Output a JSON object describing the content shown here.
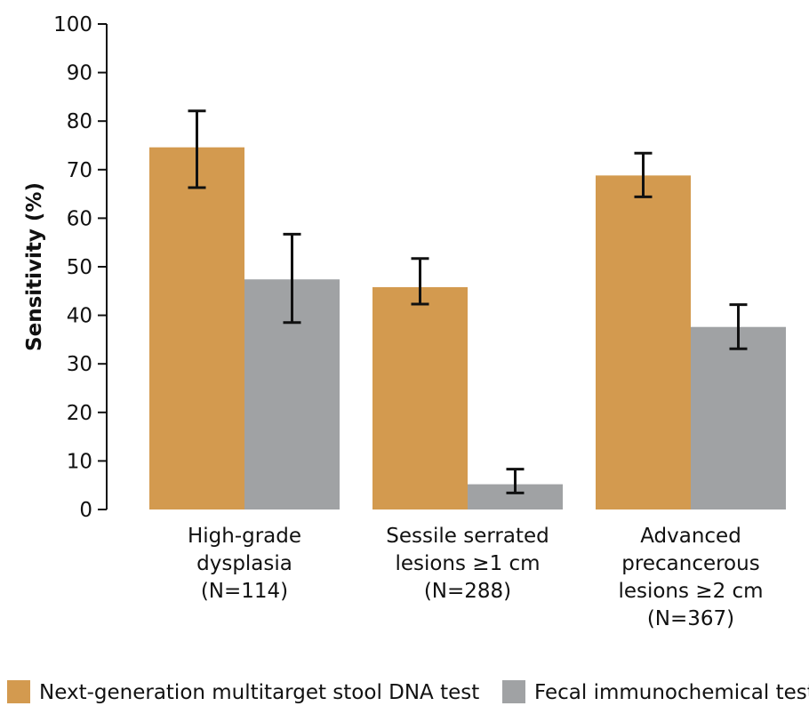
{
  "chart_data": {
    "type": "bar",
    "title": "",
    "xlabel": "",
    "ylabel": "Sensitivity (%)",
    "ylim": [
      0,
      100
    ],
    "yticks": [
      0,
      10,
      20,
      30,
      40,
      50,
      60,
      70,
      80,
      90,
      100
    ],
    "grid": false,
    "legend_position": "bottom",
    "categories": [
      [
        "High-grade",
        "dysplasia",
        "(N=114)"
      ],
      [
        "Sessile serrated",
        "lesions ≥1 cm",
        "(N=288)"
      ],
      [
        "Advanced",
        "precancerous",
        "lesions ≥2 cm",
        "(N=367)"
      ]
    ],
    "series": [
      {
        "name": "Next-generation multitarget stool DNA test",
        "color": "#D39A4F",
        "values": [
          74.6,
          45.8,
          68.8
        ],
        "ci_low": [
          66.3,
          42.3,
          64.4
        ],
        "ci_high": [
          82.1,
          51.7,
          73.4
        ]
      },
      {
        "name": "Fecal immunochemical test",
        "color": "#A0A2A4",
        "values": [
          47.4,
          5.2,
          37.6
        ],
        "ci_low": [
          38.5,
          3.4,
          33.1
        ],
        "ci_high": [
          56.7,
          8.3,
          42.2
        ]
      }
    ]
  }
}
